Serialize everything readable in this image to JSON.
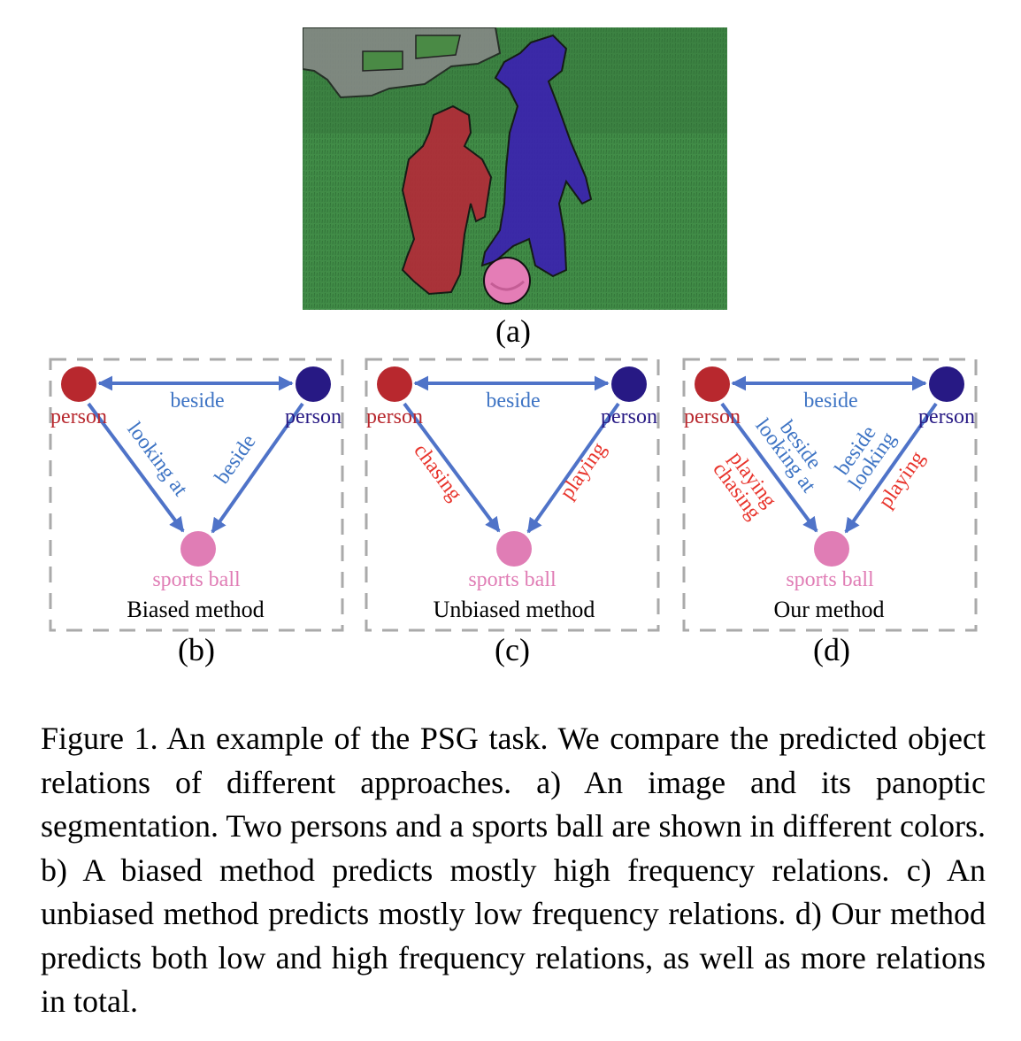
{
  "photo": {
    "panel_label": "(a)",
    "colors": {
      "grass": "#3f8a45",
      "person_1": "#b8283a",
      "person_2": "#3b1fb0",
      "sports_ball": "#e27bb4",
      "fence": "#7d7d7d"
    }
  },
  "colors": {
    "person_1": "#b8282e",
    "person_2": "#271984",
    "sports_ball": "#e07db5",
    "edge": "#4f73c8",
    "high_freq_text": "#3e74c4",
    "low_freq_text": "#e8342c",
    "dashed_border": "#aaaaaa"
  },
  "panels": [
    {
      "panel_label": "(b)",
      "method": "Biased method",
      "nodes": {
        "left": "person",
        "right": "person",
        "bottom": "sports ball"
      },
      "top_relation": "beside",
      "left_relations": [
        "looking at"
      ],
      "right_relations": [
        "beside"
      ]
    },
    {
      "panel_label": "(c)",
      "method": "Unbiased method",
      "nodes": {
        "left": "person",
        "right": "person",
        "bottom": "sports ball"
      },
      "top_relation": "beside",
      "left_relations": [
        "chasing"
      ],
      "right_relations": [
        "playing"
      ]
    },
    {
      "panel_label": "(d)",
      "method": "Our method",
      "nodes": {
        "left": "person",
        "right": "person",
        "bottom": "sports ball"
      },
      "top_relation": "beside",
      "left_relations": [
        "beside",
        "looking at",
        "playing",
        "chasing"
      ],
      "right_relations": [
        "beside",
        "looking",
        "playing"
      ]
    }
  ],
  "caption": "Figure 1.   An example of the PSG task.  We compare the predicted object relations of different approaches.  a) An image and its panoptic segmentation. Two persons and a sports ball are shown in different colors.  b) A biased method predicts mostly high frequency relations.  c) An unbiased method predicts mostly low frequency relations.  d) Our method predicts both low and high frequency relations, as well as more relations in total."
}
